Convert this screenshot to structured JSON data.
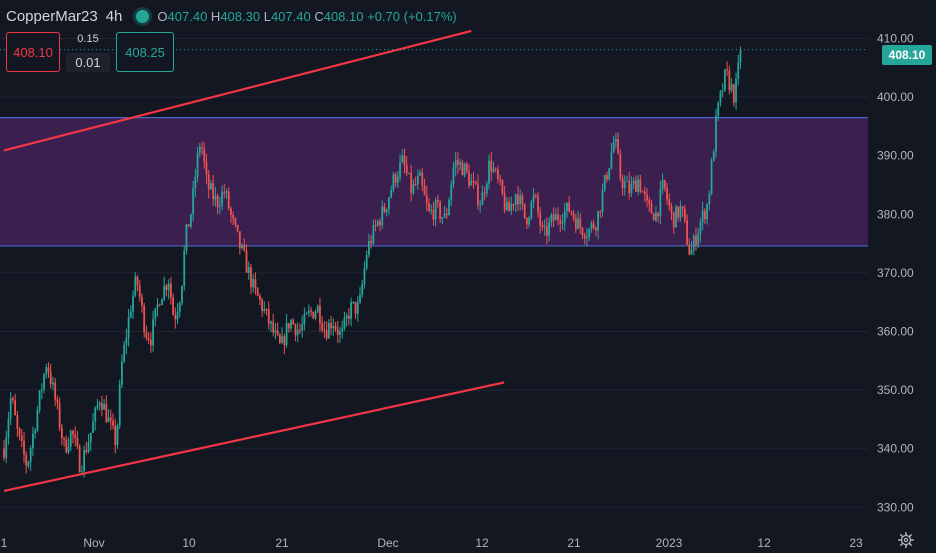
{
  "header": {
    "symbol": "CopperMar23",
    "timeframe": "4h",
    "open_label": "O",
    "open": "407.40",
    "high_label": "H",
    "high": "408.30",
    "low_label": "L",
    "low": "407.40",
    "close_label": "C",
    "close": "408.10",
    "change": "+0.70 (+0.17%)"
  },
  "trade_panel": {
    "sell_price": "408.10",
    "spread": "0.15",
    "quantity": "0.01",
    "buy_price": "408.25"
  },
  "price_tag": "408.10",
  "colors": {
    "background": "#131722",
    "up": "#26a69a",
    "down": "#ef5350",
    "trendline": "#f23645",
    "zone_fill": "#3b1f4f",
    "zone_border": "#4a66c8",
    "axis_text": "#b2b5be"
  },
  "icons": {
    "status": "market-open-dot-icon",
    "settings": "gear-icon"
  },
  "chart_data": {
    "type": "candlestick",
    "symbol": "CopperMar23",
    "interval": "4h",
    "y_ticks": [
      330,
      340,
      350,
      360,
      370,
      380,
      390,
      400,
      410
    ],
    "y_tick_labels": [
      "330.00",
      "340.00",
      "350.00",
      "360.00",
      "370.00",
      "380.00",
      "390.00",
      "400.00",
      "410.00"
    ],
    "ylim": [
      327.5,
      414.5
    ],
    "x_tick_labels": [
      "1",
      "Nov",
      "10",
      "21",
      "Dec",
      "12",
      "21",
      "2023",
      "12",
      "23"
    ],
    "last_price": 408.1,
    "zone": {
      "top": 396.5,
      "bottom": 374.6
    },
    "trendlines": [
      {
        "name": "upper channel",
        "points": [
          [
            0,
            390.9
          ],
          [
            52.5,
            411.3
          ]
        ]
      },
      {
        "name": "lower channel",
        "points": [
          [
            0,
            332.8
          ],
          [
            56.2,
            351.3
          ]
        ]
      }
    ],
    "close_path": [
      [
        0,
        340
      ],
      [
        0.8,
        349
      ],
      [
        1.6,
        342
      ],
      [
        2.6,
        337
      ],
      [
        3.8,
        347
      ],
      [
        4.8,
        355
      ],
      [
        5.8,
        348
      ],
      [
        6.8,
        340
      ],
      [
        7.6,
        343
      ],
      [
        8.6,
        337
      ],
      [
        9.8,
        343
      ],
      [
        10.8,
        349
      ],
      [
        11.9,
        344
      ],
      [
        12.6,
        341
      ],
      [
        13.2,
        354
      ],
      [
        14.2,
        364
      ],
      [
        14.9,
        369
      ],
      [
        15.9,
        360
      ],
      [
        16.5,
        359
      ],
      [
        17.5,
        366
      ],
      [
        18.5,
        369
      ],
      [
        19.1,
        362
      ],
      [
        19.9,
        367
      ],
      [
        20.4,
        376
      ],
      [
        21.1,
        381
      ],
      [
        21.6,
        388
      ],
      [
        22.1,
        393
      ],
      [
        22.8,
        385
      ],
      [
        23.9,
        382
      ],
      [
        24.8,
        384
      ],
      [
        25.6,
        379
      ],
      [
        26.4,
        375
      ],
      [
        27.1,
        372
      ],
      [
        28.1,
        367
      ],
      [
        29.1,
        364
      ],
      [
        30.2,
        360
      ],
      [
        31.1,
        357
      ],
      [
        32.1,
        362
      ],
      [
        33.2,
        360
      ],
      [
        34.3,
        363
      ],
      [
        35.3,
        364
      ],
      [
        36.1,
        360
      ],
      [
        36.9,
        362
      ],
      [
        37.9,
        359
      ],
      [
        38.9,
        364
      ],
      [
        39.9,
        364
      ],
      [
        40.8,
        374
      ],
      [
        41.8,
        378
      ],
      [
        42.8,
        381
      ],
      [
        43.8,
        386
      ],
      [
        44.8,
        389
      ],
      [
        45.8,
        384
      ],
      [
        46.7,
        386
      ],
      [
        47.7,
        380
      ],
      [
        48.6,
        381
      ],
      [
        49.6,
        379
      ],
      [
        50.6,
        389
      ],
      [
        51.6,
        388
      ],
      [
        52.6,
        385
      ],
      [
        53.6,
        382
      ],
      [
        54.6,
        389
      ],
      [
        55.6,
        385
      ],
      [
        56.6,
        380
      ],
      [
        57.6,
        384
      ],
      [
        58.6,
        379
      ],
      [
        59.6,
        383
      ],
      [
        60.6,
        376
      ],
      [
        61.6,
        379
      ],
      [
        62.6,
        380
      ],
      [
        63.6,
        381
      ],
      [
        64.6,
        378
      ],
      [
        65.6,
        377
      ],
      [
        66.6,
        379
      ],
      [
        67.6,
        386
      ],
      [
        68.6,
        393
      ],
      [
        69.3,
        386
      ],
      [
        70.3,
        384
      ],
      [
        71.3,
        386
      ],
      [
        72.3,
        381
      ],
      [
        73.3,
        380
      ],
      [
        74.1,
        385
      ],
      [
        75.1,
        379
      ],
      [
        76.1,
        381
      ],
      [
        77.1,
        373
      ],
      [
        78.1,
        378
      ],
      [
        79.1,
        382
      ],
      [
        80.1,
        397
      ],
      [
        81.1,
        404
      ],
      [
        82.1,
        400
      ],
      [
        82.8,
        408
      ]
    ]
  }
}
